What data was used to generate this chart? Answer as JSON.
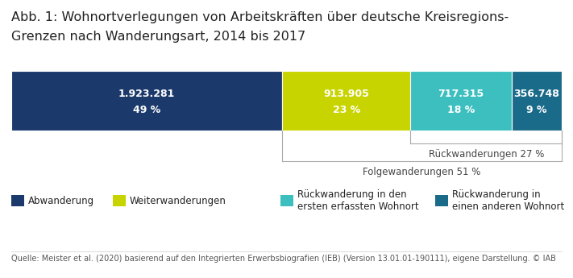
{
  "title_line1": "Abb. 1: Wohnortverlegungen von Arbeitskräften über deutsche Kreisregions-",
  "title_line2": "Grenzen nach Wanderungsart, 2014 bis 2017",
  "segments": [
    {
      "label": "Abwanderung",
      "value": 1923281,
      "pct": 49,
      "color": "#1b3a6b",
      "text_color": "#ffffff",
      "display": "1.923.281"
    },
    {
      "label": "Weiterwanderungen",
      "value": 913905,
      "pct": 23,
      "color": "#c8d400",
      "text_color": "#ffffff",
      "display": "913.905"
    },
    {
      "label": "Rückwanderung in den\nersten erfassten Wohnort",
      "value": 717315,
      "pct": 18,
      "color": "#3dbfbf",
      "text_color": "#ffffff",
      "display": "717.315"
    },
    {
      "label": "Rückwanderung in\neinen anderen Wohnort",
      "value": 356748,
      "pct": 9,
      "color": "#1a6b8a",
      "text_color": "#ffffff",
      "display": "356.748"
    }
  ],
  "folge_label": "Folgewanderungen 51 %",
  "rueck_label": "Rückwanderungen 27 %",
  "source": "Quelle: Meister et al. (2020) basierend auf den Integrierten Erwerbsbiografien (IEB) (Version 13.01.01-190111), eigene Darstellung. © IAB",
  "background_color": "#ffffff",
  "title_fontsize": 11.5,
  "bar_label_fontsize": 9,
  "source_fontsize": 7,
  "legend_fontsize": 8.5,
  "bracket_fontsize": 8.5
}
